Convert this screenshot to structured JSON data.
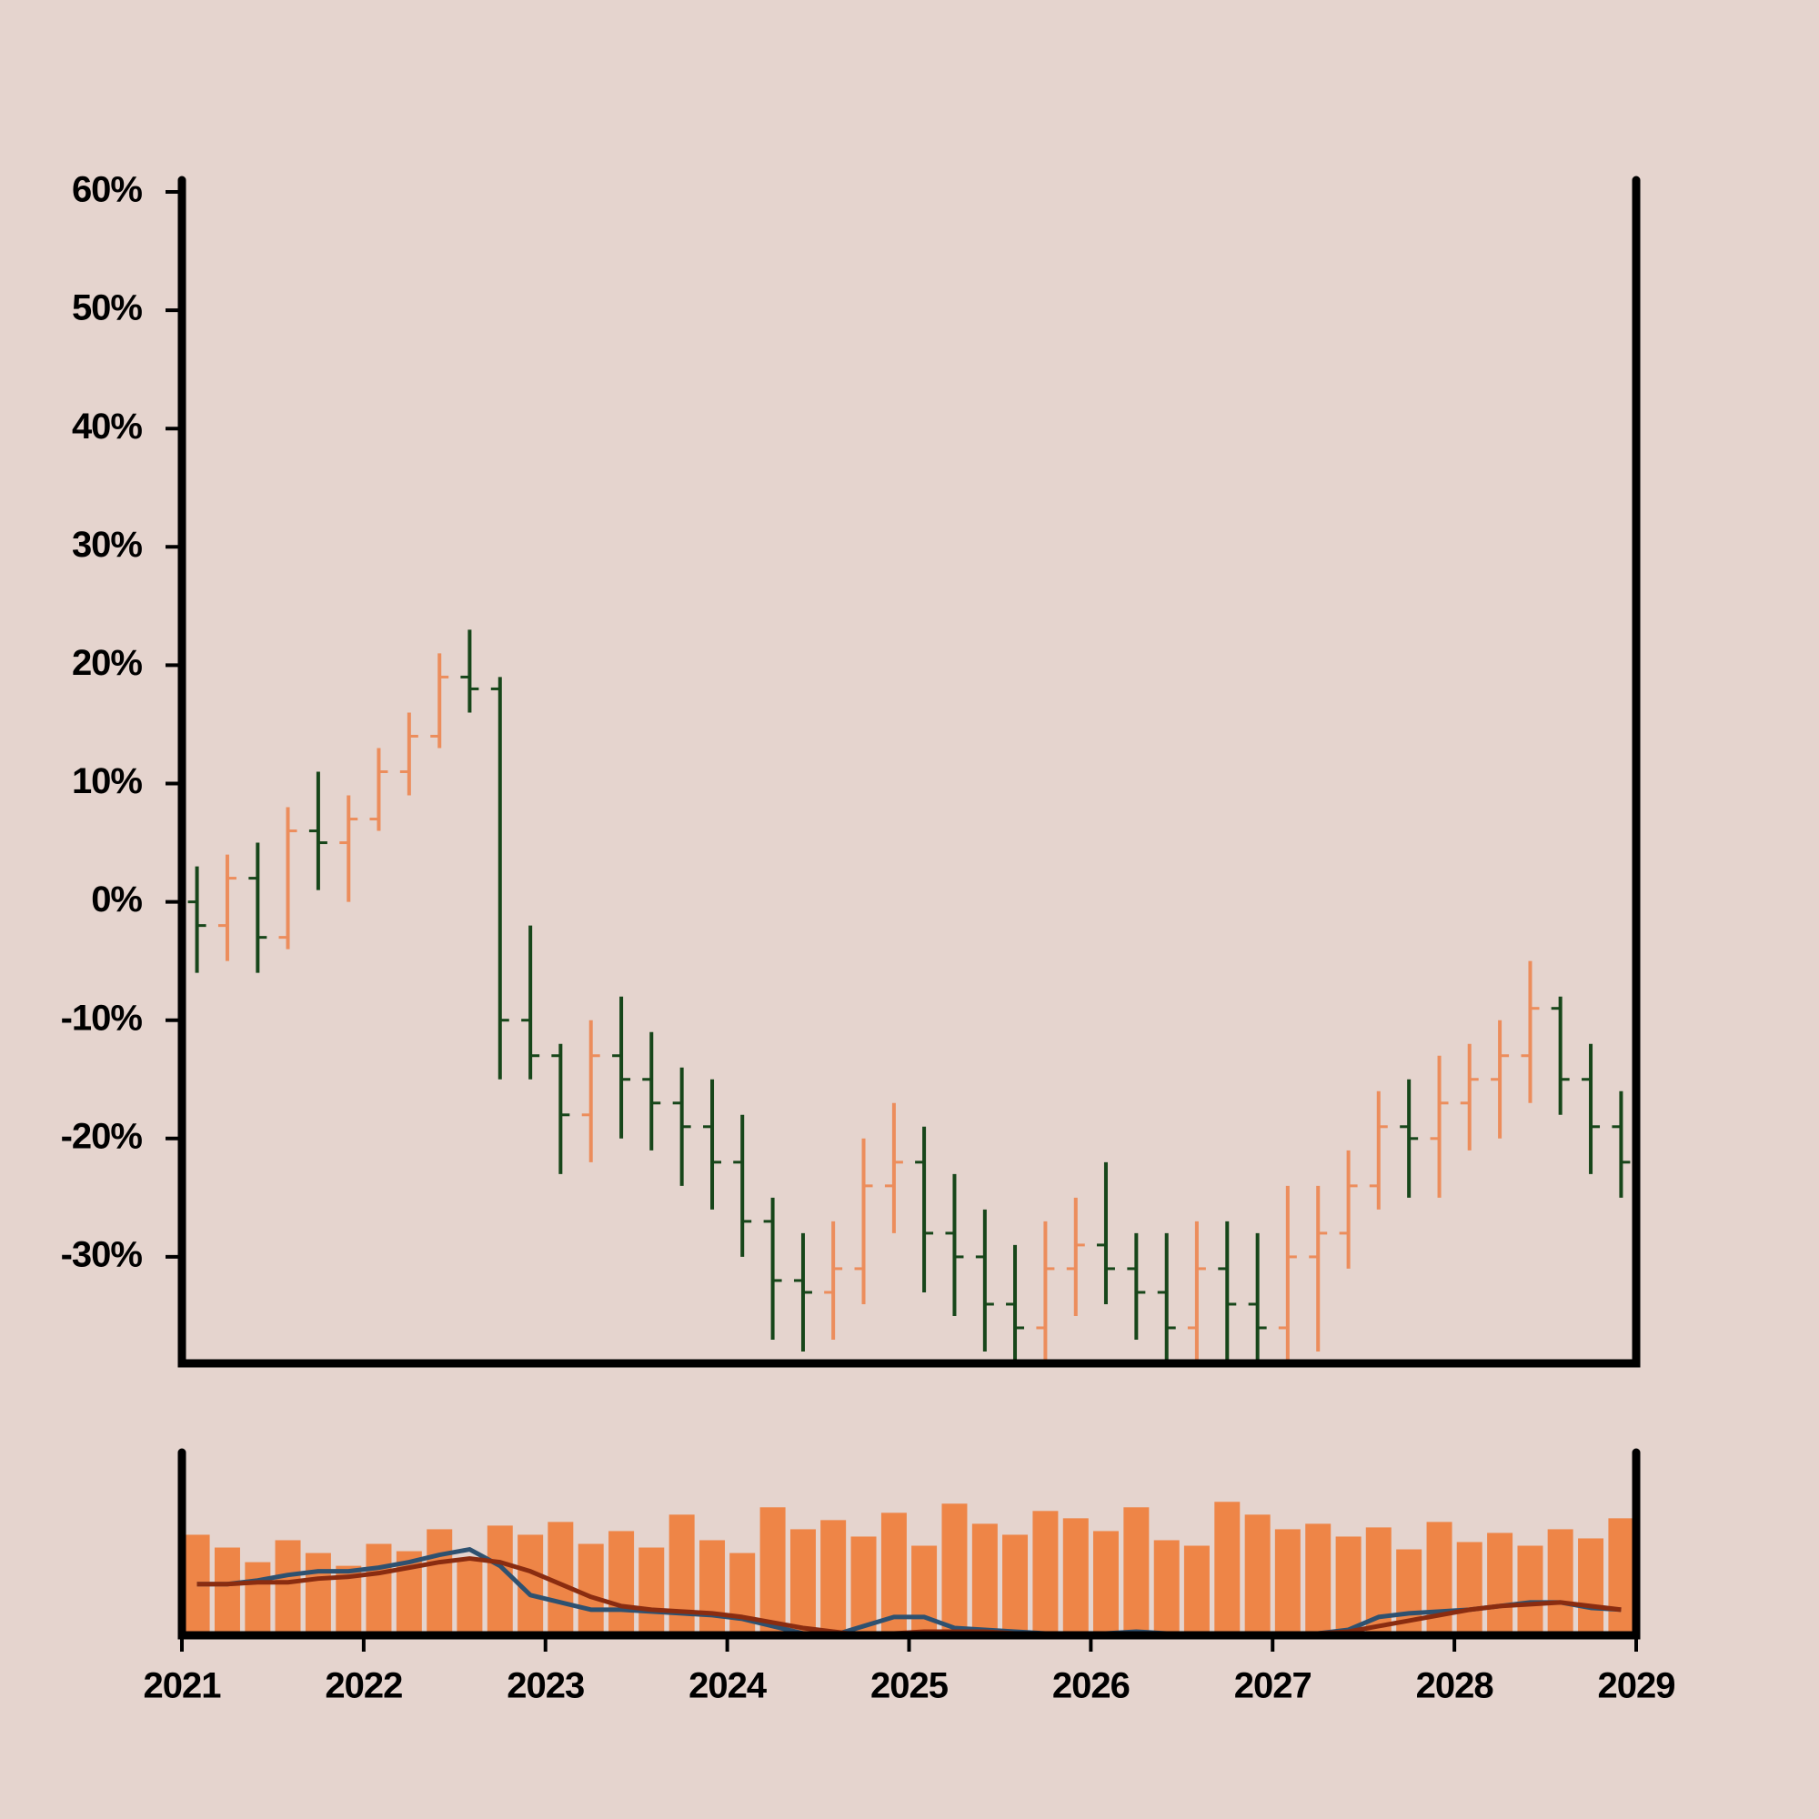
{
  "chart_data": {
    "type": "ohlc",
    "x": [
      2021.083,
      2021.25,
      2021.417,
      2021.583,
      2021.75,
      2021.917,
      2022.083,
      2022.25,
      2022.417,
      2022.583,
      2022.75,
      2022.917,
      2023.083,
      2023.25,
      2023.417,
      2023.583,
      2023.75,
      2023.917,
      2024.083,
      2024.25,
      2024.417,
      2024.583,
      2024.75,
      2024.917,
      2025.083,
      2025.25,
      2025.417,
      2025.583,
      2025.75,
      2025.917,
      2026.083,
      2026.25,
      2026.417,
      2026.583,
      2026.75,
      2026.917,
      2027.083,
      2027.25,
      2027.417,
      2027.583,
      2027.75,
      2027.917,
      2028.083,
      2028.25,
      2028.417,
      2028.583,
      2028.75,
      2028.917
    ],
    "open": [
      0,
      -2,
      2,
      -3,
      6,
      5,
      7,
      11,
      14,
      19,
      18,
      -10,
      -13,
      -18,
      -13,
      -15,
      -17,
      -19,
      -22,
      -27,
      -32,
      -33,
      -31,
      -24,
      -22,
      -28,
      -30,
      -34,
      -36,
      -31,
      -29,
      -31,
      -33,
      -36,
      -31,
      -34,
      -36,
      -30,
      -28,
      -24,
      -19,
      -20,
      -17,
      -15,
      -13,
      -9,
      -15,
      -19
    ],
    "high": [
      3,
      4,
      5,
      8,
      11,
      9,
      13,
      16,
      21,
      23,
      19,
      -2,
      -12,
      -10,
      -8,
      -11,
      -14,
      -15,
      -18,
      -25,
      -28,
      -27,
      -20,
      -17,
      -19,
      -23,
      -26,
      -29,
      -27,
      -25,
      -22,
      -28,
      -28,
      -27,
      -27,
      -28,
      -24,
      -24,
      -21,
      -16,
      -15,
      -13,
      -12,
      -10,
      -5,
      -8,
      -12,
      -16
    ],
    "low": [
      -6,
      -5,
      -6,
      -4,
      1,
      0,
      6,
      9,
      13,
      16,
      -15,
      -15,
      -23,
      -22,
      -20,
      -21,
      -24,
      -26,
      -30,
      -37,
      -38,
      -37,
      -34,
      -28,
      -33,
      -35,
      -38,
      -39,
      -39,
      -35,
      -34,
      -37,
      -39,
      -39,
      -39,
      -39,
      -39,
      -38,
      -31,
      -26,
      -25,
      -25,
      -21,
      -20,
      -17,
      -18,
      -23,
      -25
    ],
    "close": [
      -2,
      2,
      -3,
      6,
      5,
      7,
      11,
      14,
      19,
      18,
      -10,
      -13,
      -18,
      -13,
      -15,
      -17,
      -19,
      -22,
      -27,
      -32,
      -33,
      -31,
      -24,
      -22,
      -28,
      -30,
      -34,
      -36,
      -31,
      -29,
      -31,
      -33,
      -36,
      -31,
      -34,
      -36,
      -30,
      -28,
      -24,
      -19,
      -20,
      -17,
      -15,
      -13,
      -9,
      -15,
      -19,
      -22
    ],
    "up_color": "#ec8d5c",
    "down_color": "#17461a",
    "xlim": [
      2021,
      2029
    ],
    "xticks": [
      2021,
      2022,
      2023,
      2024,
      2025,
      2026,
      2027,
      2028,
      2029
    ],
    "ylim": [
      -39,
      61
    ],
    "yticks": [
      {
        "value": -30,
        "label": "-30%"
      },
      {
        "value": -20,
        "label": "-20%"
      },
      {
        "value": -10,
        "label": "-10%"
      },
      {
        "value": 0,
        "label": "0%"
      },
      {
        "value": 10,
        "label": "10%"
      },
      {
        "value": 20,
        "label": "20%"
      },
      {
        "value": 30,
        "label": "30%"
      },
      {
        "value": 40,
        "label": "40%"
      },
      {
        "value": 50,
        "label": "50%"
      },
      {
        "value": 60,
        "label": "60%"
      }
    ],
    "volume": {
      "ylim": [
        0,
        100
      ],
      "color": "#ee8547",
      "values": [
        55,
        48,
        40,
        52,
        45,
        38,
        50,
        46,
        58,
        42,
        60,
        55,
        62,
        50,
        57,
        48,
        66,
        52,
        45,
        70,
        58,
        63,
        54,
        67,
        49,
        72,
        61,
        55,
        68,
        64,
        57,
        70,
        52,
        49,
        73,
        66,
        58,
        61,
        54,
        59,
        47,
        62,
        51,
        56,
        49,
        58,
        53,
        64
      ],
      "lines": [
        {
          "color": "#2e5170",
          "values": [
            28,
            28,
            30,
            33,
            35,
            35,
            37,
            40,
            44,
            47,
            38,
            22,
            18,
            14,
            14,
            13,
            12,
            11,
            9,
            5,
            1,
            0,
            5,
            10,
            10,
            4,
            3,
            2,
            1,
            0,
            1,
            2,
            1,
            0,
            0,
            0,
            0,
            1,
            3,
            10,
            12,
            13,
            14,
            16,
            18,
            18,
            15,
            14
          ]
        },
        {
          "color": "#8a2c10",
          "values": [
            28,
            28,
            29,
            29,
            31,
            32,
            34,
            37,
            40,
            42,
            40,
            35,
            28,
            21,
            16,
            14,
            13,
            12,
            10,
            7,
            4,
            2,
            0,
            1,
            2,
            2,
            2,
            1,
            0,
            0,
            0,
            0,
            0,
            0,
            0,
            0,
            0,
            1,
            2,
            5,
            8,
            11,
            14,
            16,
            17,
            18,
            16,
            14
          ]
        }
      ]
    }
  }
}
